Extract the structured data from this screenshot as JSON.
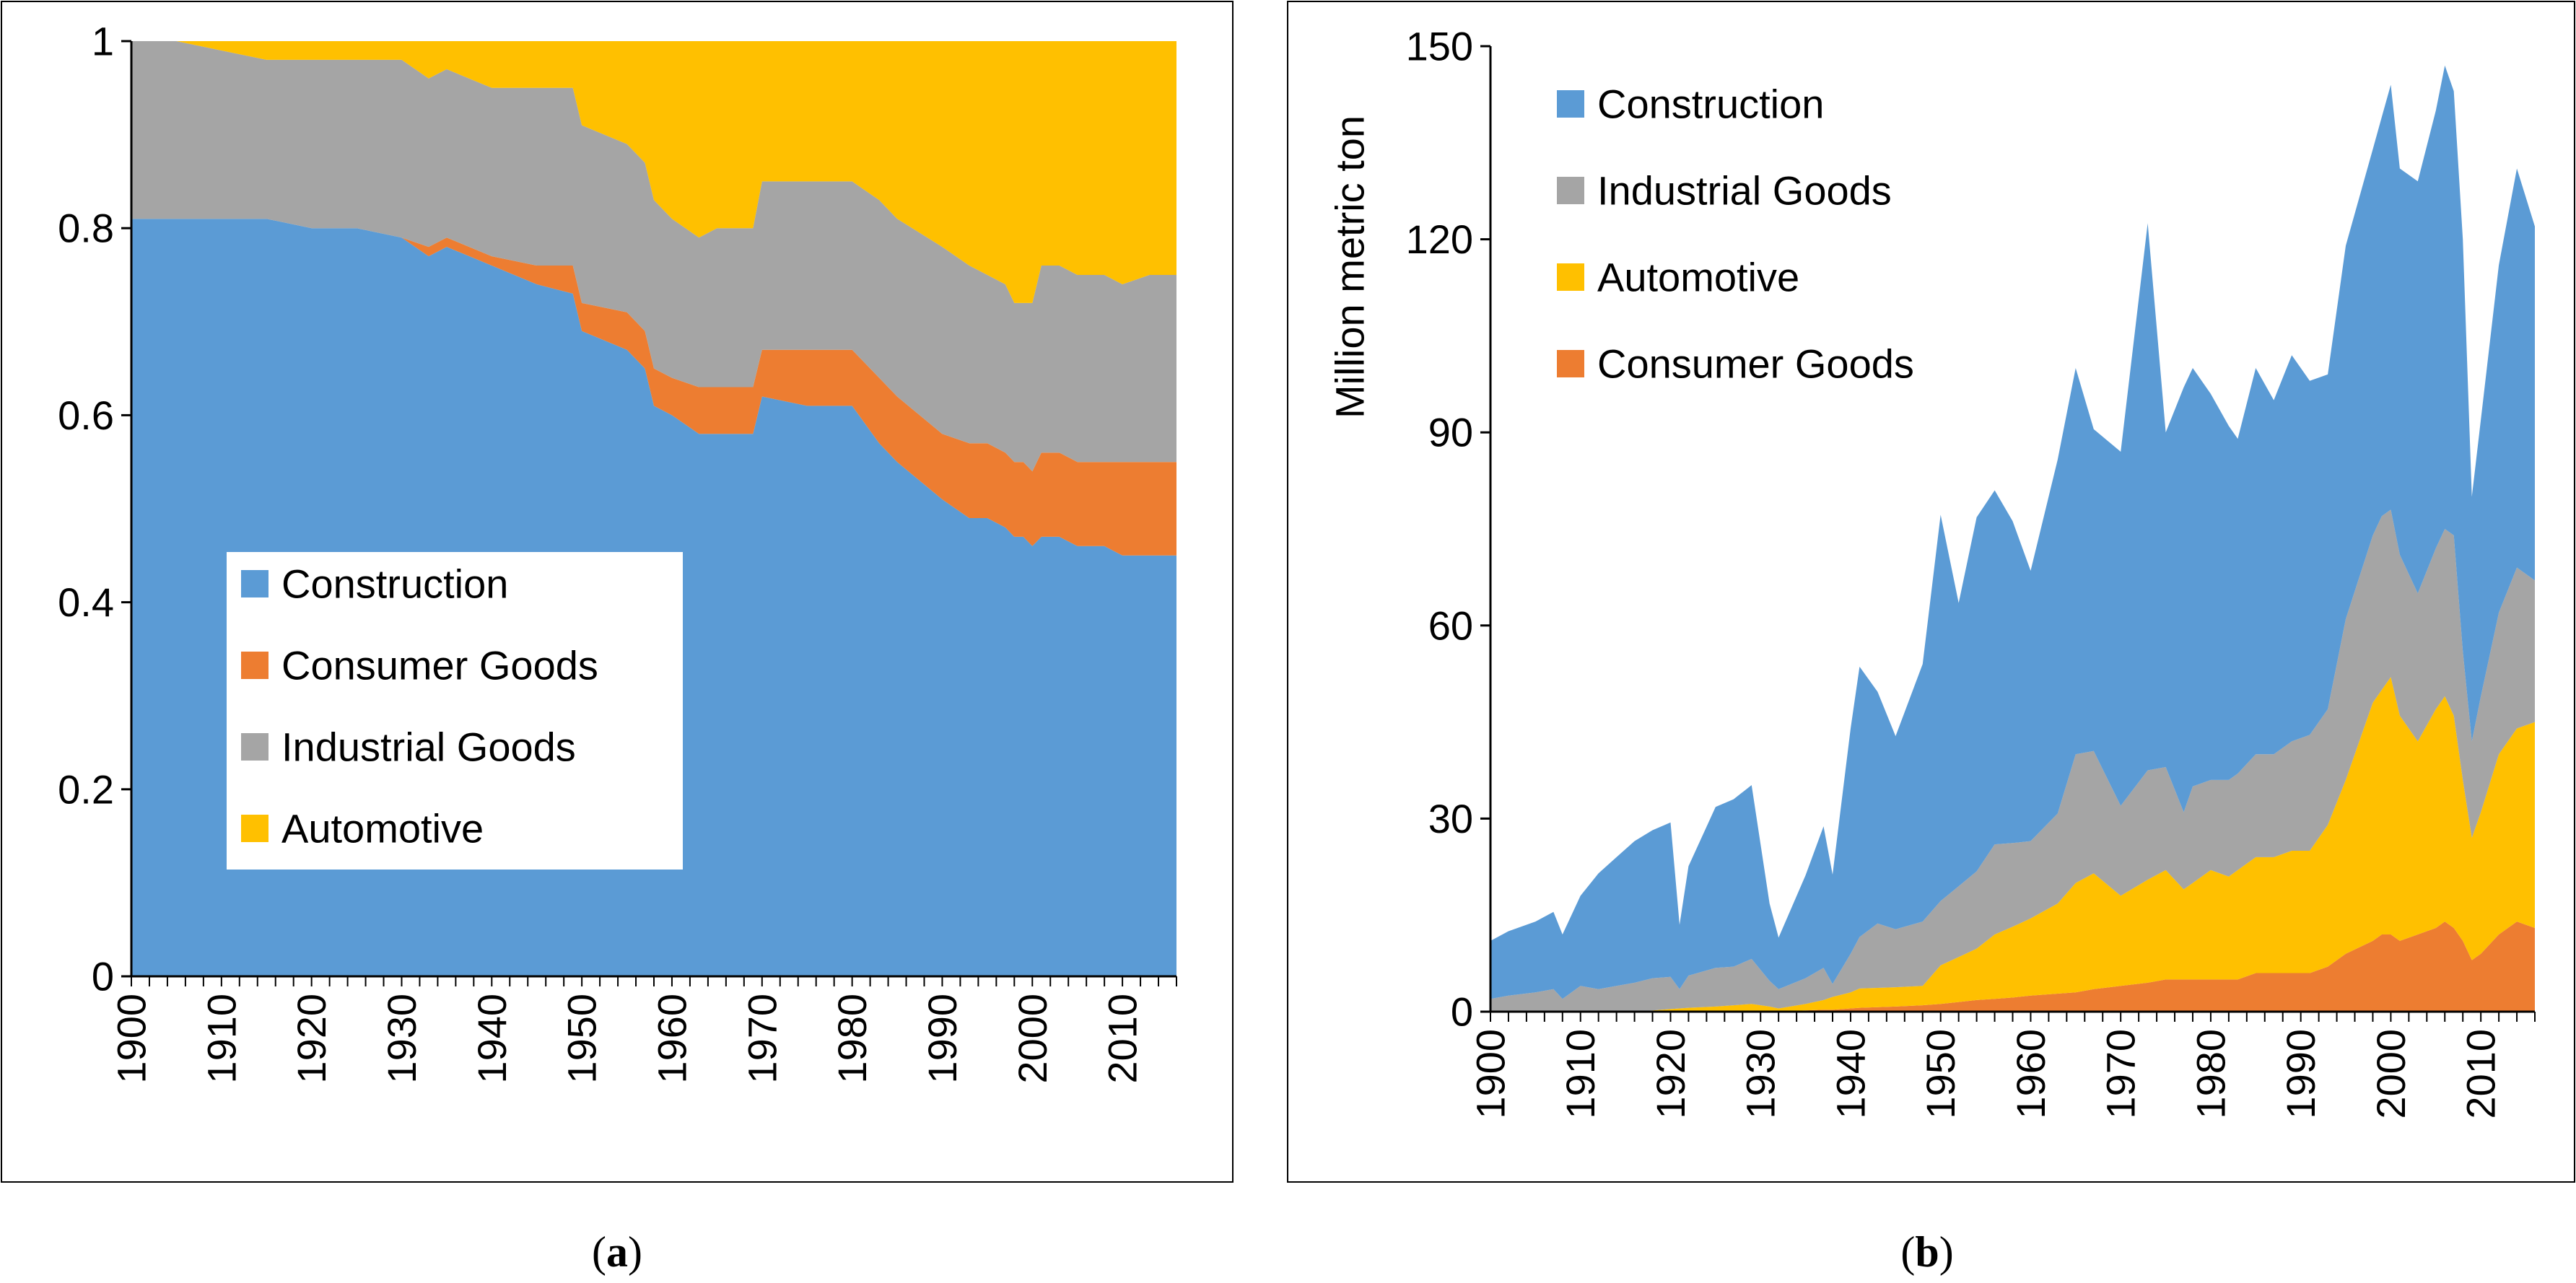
{
  "captions": {
    "a_open": "(",
    "a_letter": "a",
    "a_close": ")",
    "b_open": "(",
    "b_letter": "b",
    "b_close": ")"
  },
  "colors": {
    "construction": "#5b9bd5",
    "consumer_goods": "#ed7d31",
    "industrial_goods": "#a5a5a5",
    "automotive": "#ffc000"
  },
  "chart_data": [
    {
      "id": "a",
      "type": "area",
      "stacked": true,
      "normalized": true,
      "title": "",
      "xlabel": "",
      "ylabel": "",
      "xlim": [
        1900,
        2016
      ],
      "ylim": [
        0,
        1
      ],
      "yticks": [
        "0",
        "0.2",
        "0.4",
        "0.6",
        "0.8",
        "1"
      ],
      "xticks": [
        "1900",
        "1910",
        "1920",
        "1930",
        "1940",
        "1950",
        "1960",
        "1970",
        "1980",
        "1990",
        "2000",
        "2010"
      ],
      "legend_position": "lower-center",
      "legend": [
        "Construction",
        "Consumer Goods",
        "Industrial Goods",
        "Automotive"
      ],
      "stack_order": [
        "Construction",
        "Consumer Goods",
        "Industrial Goods",
        "Automotive"
      ],
      "x": [
        1900,
        1905,
        1910,
        1915,
        1920,
        1925,
        1930,
        1933,
        1935,
        1940,
        1945,
        1949,
        1950,
        1955,
        1957,
        1958,
        1960,
        1963,
        1965,
        1969,
        1970,
        1975,
        1980,
        1983,
        1985,
        1990,
        1993,
        1995,
        1997,
        1998,
        1999,
        2000,
        2001,
        2003,
        2005,
        2008,
        2010,
        2013,
        2016
      ],
      "series": [
        {
          "name": "Construction",
          "values": [
            0.81,
            0.81,
            0.81,
            0.81,
            0.8,
            0.8,
            0.79,
            0.77,
            0.78,
            0.76,
            0.74,
            0.73,
            0.69,
            0.67,
            0.65,
            0.61,
            0.6,
            0.58,
            0.58,
            0.58,
            0.62,
            0.61,
            0.61,
            0.57,
            0.55,
            0.51,
            0.49,
            0.49,
            0.48,
            0.47,
            0.47,
            0.46,
            0.47,
            0.47,
            0.46,
            0.46,
            0.45,
            0.45,
            0.45
          ]
        },
        {
          "name": "Consumer Goods",
          "values": [
            0.0,
            0.0,
            0.0,
            0.0,
            0.0,
            0.0,
            0.0,
            0.01,
            0.01,
            0.01,
            0.02,
            0.03,
            0.03,
            0.04,
            0.04,
            0.04,
            0.04,
            0.05,
            0.05,
            0.05,
            0.05,
            0.06,
            0.06,
            0.07,
            0.07,
            0.07,
            0.08,
            0.08,
            0.08,
            0.08,
            0.08,
            0.08,
            0.09,
            0.09,
            0.09,
            0.09,
            0.1,
            0.1,
            0.1
          ]
        },
        {
          "name": "Industrial Goods",
          "values": [
            0.19,
            0.19,
            0.18,
            0.17,
            0.18,
            0.18,
            0.19,
            0.18,
            0.18,
            0.18,
            0.19,
            0.19,
            0.19,
            0.18,
            0.18,
            0.18,
            0.17,
            0.16,
            0.17,
            0.17,
            0.18,
            0.18,
            0.18,
            0.19,
            0.19,
            0.2,
            0.19,
            0.18,
            0.18,
            0.17,
            0.17,
            0.18,
            0.2,
            0.2,
            0.2,
            0.2,
            0.19,
            0.2,
            0.2
          ]
        },
        {
          "name": "Automotive",
          "values": [
            0.0,
            0.0,
            0.01,
            0.02,
            0.02,
            0.02,
            0.02,
            0.04,
            0.03,
            0.05,
            0.05,
            0.05,
            0.09,
            0.11,
            0.13,
            0.17,
            0.19,
            0.21,
            0.2,
            0.2,
            0.15,
            0.15,
            0.15,
            0.17,
            0.19,
            0.22,
            0.24,
            0.25,
            0.26,
            0.28,
            0.28,
            0.28,
            0.24,
            0.24,
            0.25,
            0.25,
            0.26,
            0.25,
            0.25
          ]
        }
      ]
    },
    {
      "id": "b",
      "type": "area",
      "stacked": true,
      "title": "",
      "xlabel": "",
      "ylabel": "Million metric ton",
      "xlim": [
        1900,
        2016
      ],
      "ylim": [
        0,
        150
      ],
      "yticks": [
        "0",
        "30",
        "60",
        "90",
        "120",
        "150"
      ],
      "xticks": [
        "1900",
        "1910",
        "1920",
        "1930",
        "1940",
        "1950",
        "1960",
        "1970",
        "1980",
        "1990",
        "2000",
        "2010"
      ],
      "legend_position": "top-left",
      "legend": [
        "Construction",
        "Industrial Goods",
        "Automotive",
        "Consumer Goods"
      ],
      "x": [
        1900,
        1902,
        1905,
        1907,
        1908,
        1910,
        1912,
        1914,
        1916,
        1918,
        1920,
        1921,
        1922,
        1925,
        1927,
        1929,
        1931,
        1932,
        1935,
        1937,
        1938,
        1940,
        1941,
        1943,
        1945,
        1948,
        1950,
        1952,
        1954,
        1956,
        1958,
        1960,
        1963,
        1965,
        1967,
        1970,
        1973,
        1975,
        1977,
        1978,
        1980,
        1982,
        1983,
        1985,
        1987,
        1989,
        1991,
        1993,
        1995,
        1998,
        1999,
        2000,
        2001,
        2003,
        2005,
        2006,
        2007,
        2008,
        2009,
        2010,
        2012,
        2014,
        2016
      ],
      "series": [
        {
          "name": "Consumer Goods",
          "values": [
            0,
            0,
            0,
            0,
            0,
            0,
            0,
            0,
            0,
            0,
            0,
            0,
            0,
            0,
            0,
            0,
            0,
            0,
            0.2,
            0.3,
            0.3,
            0.5,
            0.6,
            0.7,
            0.8,
            1,
            1.2,
            1.5,
            1.8,
            2,
            2.2,
            2.5,
            2.8,
            3,
            3.5,
            4,
            4.5,
            5,
            5,
            5,
            5,
            5,
            5,
            6,
            6,
            6,
            6,
            7,
            9,
            11,
            12,
            12,
            11,
            12,
            13,
            14,
            13,
            11,
            8,
            9,
            12,
            14,
            13
          ]
        },
        {
          "name": "Automotive",
          "values": [
            0,
            0,
            0,
            0,
            0,
            0,
            0,
            0,
            0,
            0.2,
            0.4,
            0.5,
            0.6,
            0.8,
            1,
            1.2,
            0.8,
            0.5,
            1,
            1.5,
            2,
            2.5,
            3,
            3,
            3,
            3,
            6,
            7,
            8,
            10,
            11,
            12,
            14,
            17,
            18,
            14,
            16,
            17,
            14,
            15,
            17,
            16,
            17,
            18,
            18,
            19,
            19,
            22,
            27,
            37,
            38,
            40,
            35,
            30,
            34,
            35,
            33,
            25,
            19,
            22,
            28,
            30,
            32
          ]
        },
        {
          "name": "Industrial Goods",
          "values": [
            2,
            2.5,
            3,
            3.5,
            2,
            4,
            3.5,
            4,
            4.5,
            5,
            5,
            3,
            5,
            6,
            6,
            7,
            4,
            3,
            4,
            5,
            2,
            6,
            8,
            10,
            9,
            10,
            10,
            11,
            12,
            14,
            13,
            12,
            14,
            20,
            19,
            14,
            17,
            16,
            12,
            15,
            14,
            15,
            15,
            16,
            16,
            17,
            18,
            18,
            25,
            26,
            27,
            26,
            25,
            23,
            25,
            26,
            28,
            20,
            15,
            18,
            22,
            25,
            22
          ]
        },
        {
          "name": "Construction",
          "values": [
            9,
            10,
            11,
            12,
            10,
            14,
            18,
            20,
            22,
            23,
            24,
            10,
            17,
            25,
            26,
            27,
            12,
            8,
            16,
            22,
            17,
            35,
            42,
            36,
            30,
            40,
            60,
            44,
            55,
            55,
            50,
            42,
            55,
            60,
            50,
            55,
            85,
            52,
            66,
            65,
            60,
            55,
            52,
            60,
            55,
            60,
            55,
            52,
            58,
            60,
            62,
            66,
            60,
            64,
            68,
            72,
            69,
            64,
            38,
            43,
            54,
            62,
            55
          ]
        }
      ]
    }
  ]
}
